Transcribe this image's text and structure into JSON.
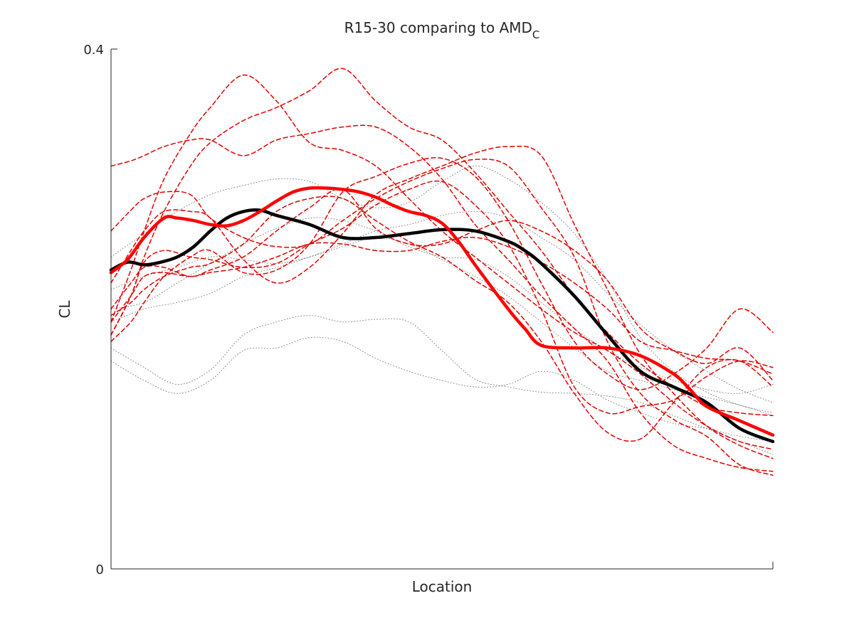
{
  "chart_data": {
    "type": "line",
    "title": "R15-30 comparing to AMD",
    "title_subscript": "C",
    "xlabel": "Location",
    "ylabel": "CL",
    "ylim": [
      0,
      0.4
    ],
    "yticks": [
      0,
      0.4
    ],
    "ytick_labels": [
      "0",
      "0.4"
    ],
    "xlim": [
      0,
      1
    ],
    "grid": false,
    "legend": "none",
    "colors": {
      "mean_group": "#ff0000",
      "mean_reference": "#000000",
      "individual_group": "#e00000",
      "individual_reference": "#555555"
    },
    "series": [
      {
        "style": "dotted",
        "color": "#555555",
        "x": [
          0,
          0.05,
          0.1,
          0.15,
          0.2,
          0.25,
          0.3,
          0.35,
          0.4,
          0.45,
          0.5,
          0.55,
          0.6,
          0.65,
          0.7,
          0.75,
          0.8,
          0.85,
          0.9,
          0.95,
          1
        ],
        "values": [
          0.17,
          0.155,
          0.142,
          0.153,
          0.18,
          0.19,
          0.195,
          0.19,
          0.192,
          0.19,
          0.168,
          0.146,
          0.14,
          0.136,
          0.135,
          0.133,
          0.128,
          0.118,
          0.108,
          0.098,
          0.088
        ]
      },
      {
        "style": "dotted",
        "color": "#555555",
        "x": [
          0,
          0.05,
          0.1,
          0.15,
          0.2,
          0.25,
          0.3,
          0.35,
          0.4,
          0.45,
          0.5,
          0.55,
          0.6,
          0.65,
          0.7,
          0.75,
          0.8,
          0.85,
          0.9,
          0.95,
          1
        ],
        "values": [
          0.19,
          0.2,
          0.205,
          0.212,
          0.225,
          0.232,
          0.24,
          0.25,
          0.26,
          0.265,
          0.272,
          0.275,
          0.27,
          0.255,
          0.238,
          0.212,
          0.188,
          0.168,
          0.152,
          0.138,
          0.128
        ]
      },
      {
        "style": "dotted",
        "color": "#555555",
        "x": [
          0,
          0.05,
          0.1,
          0.15,
          0.2,
          0.25,
          0.3,
          0.35,
          0.4,
          0.45,
          0.5,
          0.55,
          0.6,
          0.65,
          0.7,
          0.75,
          0.8,
          0.85,
          0.9,
          0.95,
          1
        ],
        "values": [
          0.2,
          0.205,
          0.22,
          0.235,
          0.25,
          0.262,
          0.27,
          0.268,
          0.26,
          0.248,
          0.24,
          0.238,
          0.225,
          0.205,
          0.185,
          0.168,
          0.155,
          0.145,
          0.138,
          0.135,
          0.142
        ]
      },
      {
        "style": "dotted",
        "color": "#555555",
        "x": [
          0,
          0.05,
          0.1,
          0.15,
          0.2,
          0.25,
          0.3,
          0.35,
          0.4,
          0.45,
          0.5,
          0.55,
          0.6,
          0.65,
          0.7,
          0.75,
          0.8,
          0.85,
          0.9,
          0.95,
          1
        ],
        "values": [
          0.24,
          0.258,
          0.275,
          0.288,
          0.295,
          0.3,
          0.298,
          0.285,
          0.278,
          0.282,
          0.298,
          0.31,
          0.3,
          0.282,
          0.258,
          0.222,
          0.178,
          0.152,
          0.136,
          0.126,
          0.12
        ]
      },
      {
        "style": "dotted",
        "color": "#555555",
        "x": [
          0,
          0.05,
          0.1,
          0.15,
          0.2,
          0.25,
          0.3,
          0.35,
          0.4,
          0.45,
          0.5,
          0.55,
          0.6,
          0.65,
          0.7,
          0.75,
          0.8,
          0.85,
          0.9,
          0.95,
          1
        ],
        "values": [
          0.215,
          0.225,
          0.232,
          0.24,
          0.238,
          0.235,
          0.24,
          0.248,
          0.255,
          0.25,
          0.238,
          0.225,
          0.21,
          0.19,
          0.17,
          0.152,
          0.145,
          0.138,
          0.132,
          0.126,
          0.118
        ]
      },
      {
        "style": "dotted",
        "color": "#555555",
        "x": [
          0,
          0.05,
          0.1,
          0.15,
          0.2,
          0.25,
          0.3,
          0.35,
          0.4,
          0.45,
          0.5,
          0.55,
          0.6,
          0.65,
          0.7,
          0.75,
          0.8,
          0.85,
          0.9,
          0.95,
          1
        ],
        "values": [
          0.16,
          0.145,
          0.135,
          0.145,
          0.168,
          0.17,
          0.178,
          0.175,
          0.162,
          0.152,
          0.145,
          0.14,
          0.142,
          0.152,
          0.145,
          0.13,
          0.12,
          0.112,
          0.108,
          0.102,
          0.098
        ]
      },
      {
        "style": "dashed",
        "color": "#e00000",
        "x": [
          0,
          0.03,
          0.05,
          0.08,
          0.12,
          0.15,
          0.2,
          0.25,
          0.3,
          0.35,
          0.4,
          0.45,
          0.5,
          0.55,
          0.6,
          0.65,
          0.7,
          0.75,
          0.8,
          0.85,
          0.9,
          0.95,
          1
        ],
        "values": [
          0.31,
          0.314,
          0.318,
          0.325,
          0.33,
          0.33,
          0.318,
          0.33,
          0.335,
          0.34,
          0.34,
          0.325,
          0.3,
          0.265,
          0.238,
          0.21,
          0.185,
          0.16,
          0.12,
          0.095,
          0.085,
          0.078,
          0.075
        ]
      },
      {
        "style": "dashed",
        "color": "#e00000",
        "x": [
          0,
          0.03,
          0.05,
          0.08,
          0.12,
          0.15,
          0.2,
          0.25,
          0.3,
          0.35,
          0.4,
          0.45,
          0.5,
          0.55,
          0.6,
          0.65,
          0.7,
          0.75,
          0.8,
          0.85,
          0.9,
          0.95,
          1
        ],
        "values": [
          0.19,
          0.23,
          0.26,
          0.3,
          0.335,
          0.355,
          0.38,
          0.36,
          0.328,
          0.322,
          0.31,
          0.285,
          0.26,
          0.24,
          0.22,
          0.2,
          0.182,
          0.168,
          0.15,
          0.128,
          0.11,
          0.098,
          0.092
        ]
      },
      {
        "style": "dashed",
        "color": "#e00000",
        "x": [
          0,
          0.03,
          0.05,
          0.08,
          0.12,
          0.15,
          0.2,
          0.25,
          0.3,
          0.35,
          0.4,
          0.45,
          0.5,
          0.55,
          0.6,
          0.65,
          0.7,
          0.75,
          0.8,
          0.85,
          0.9,
          0.95,
          1
        ],
        "values": [
          0.18,
          0.21,
          0.24,
          0.275,
          0.31,
          0.328,
          0.345,
          0.355,
          0.368,
          0.385,
          0.36,
          0.34,
          0.33,
          0.305,
          0.275,
          0.245,
          0.21,
          0.182,
          0.158,
          0.14,
          0.125,
          0.12,
          0.118
        ]
      },
      {
        "style": "dashed",
        "color": "#e00000",
        "x": [
          0,
          0.03,
          0.05,
          0.08,
          0.12,
          0.15,
          0.2,
          0.25,
          0.3,
          0.35,
          0.4,
          0.45,
          0.5,
          0.55,
          0.6,
          0.65,
          0.7,
          0.75,
          0.8,
          0.85,
          0.9,
          0.95,
          1
        ],
        "values": [
          0.22,
          0.245,
          0.26,
          0.275,
          0.275,
          0.27,
          0.238,
          0.22,
          0.232,
          0.258,
          0.288,
          0.3,
          0.31,
          0.32,
          0.325,
          0.318,
          0.265,
          0.215,
          0.165,
          0.135,
          0.11,
          0.095,
          0.085
        ]
      },
      {
        "style": "dashed",
        "color": "#e00000",
        "x": [
          0,
          0.03,
          0.05,
          0.08,
          0.12,
          0.15,
          0.2,
          0.25,
          0.3,
          0.35,
          0.4,
          0.45,
          0.5,
          0.55,
          0.6,
          0.65,
          0.7,
          0.75,
          0.8,
          0.85,
          0.9,
          0.95,
          1
        ],
        "values": [
          0.26,
          0.276,
          0.285,
          0.29,
          0.288,
          0.27,
          0.255,
          0.248,
          0.25,
          0.268,
          0.285,
          0.298,
          0.308,
          0.315,
          0.31,
          0.278,
          0.24,
          0.175,
          0.135,
          0.115,
          0.102,
          0.08,
          0.072
        ]
      },
      {
        "style": "dashed",
        "color": "#e00000",
        "x": [
          0,
          0.03,
          0.05,
          0.08,
          0.12,
          0.15,
          0.2,
          0.25,
          0.3,
          0.35,
          0.4,
          0.45,
          0.5,
          0.55,
          0.6,
          0.65,
          0.7,
          0.75,
          0.8,
          0.85,
          0.9,
          0.95,
          1
        ],
        "values": [
          0.175,
          0.19,
          0.205,
          0.225,
          0.24,
          0.245,
          0.228,
          0.23,
          0.25,
          0.29,
          0.302,
          0.312,
          0.316,
          0.302,
          0.268,
          0.22,
          0.175,
          0.15,
          0.138,
          0.15,
          0.17,
          0.2,
          0.182
        ]
      },
      {
        "style": "dashed",
        "color": "#e00000",
        "x": [
          0,
          0.03,
          0.05,
          0.08,
          0.12,
          0.15,
          0.2,
          0.25,
          0.3,
          0.35,
          0.4,
          0.45,
          0.5,
          0.55,
          0.6,
          0.65,
          0.7,
          0.75,
          0.8,
          0.85,
          0.9,
          0.95,
          1
        ],
        "values": [
          0.2,
          0.22,
          0.232,
          0.232,
          0.225,
          0.23,
          0.24,
          0.26,
          0.278,
          0.292,
          0.262,
          0.25,
          0.25,
          0.26,
          0.268,
          0.26,
          0.245,
          0.222,
          0.185,
          0.168,
          0.158,
          0.17,
          0.145
        ]
      },
      {
        "style": "dashed",
        "color": "#e00000",
        "x": [
          0,
          0.03,
          0.05,
          0.08,
          0.12,
          0.15,
          0.2,
          0.25,
          0.3,
          0.35,
          0.4,
          0.45,
          0.5,
          0.55,
          0.6,
          0.65,
          0.7,
          0.75,
          0.8,
          0.85,
          0.9,
          0.95,
          1
        ],
        "values": [
          0.19,
          0.21,
          0.225,
          0.228,
          0.225,
          0.228,
          0.232,
          0.24,
          0.25,
          0.25,
          0.245,
          0.245,
          0.252,
          0.255,
          0.248,
          0.236,
          0.22,
          0.2,
          0.175,
          0.168,
          0.162,
          0.16,
          0.15
        ]
      },
      {
        "style": "dashed",
        "color": "#e00000",
        "x": [
          0,
          0.03,
          0.05,
          0.08,
          0.12,
          0.15,
          0.2,
          0.25,
          0.3,
          0.35,
          0.4,
          0.45,
          0.5,
          0.55,
          0.6,
          0.65,
          0.7,
          0.75,
          0.8,
          0.85,
          0.9,
          0.95,
          1
        ],
        "values": [
          0.195,
          0.205,
          0.215,
          0.225,
          0.232,
          0.235,
          0.25,
          0.275,
          0.285,
          0.285,
          0.268,
          0.252,
          0.24,
          0.222,
          0.205,
          0.175,
          0.135,
          0.105,
          0.1,
          0.128,
          0.155,
          0.16,
          0.14
        ]
      },
      {
        "style": "dashed",
        "color": "#e00000",
        "x": [
          0,
          0.03,
          0.05,
          0.08,
          0.12,
          0.15,
          0.2,
          0.25,
          0.3,
          0.35,
          0.4,
          0.45,
          0.5,
          0.55,
          0.6,
          0.65,
          0.7,
          0.75,
          0.8,
          0.85,
          0.9,
          0.95,
          1
        ],
        "values": [
          0.18,
          0.21,
          0.236,
          0.245,
          0.24,
          0.238,
          0.232,
          0.235,
          0.25,
          0.262,
          0.28,
          0.292,
          0.298,
          0.28,
          0.25,
          0.2,
          0.14,
          0.12,
          0.125,
          0.13,
          0.148,
          0.16,
          0.155
        ]
      },
      {
        "name": "mean-reference",
        "style": "solid-thick",
        "color": "#000000",
        "x": [
          0,
          0.025,
          0.05,
          0.075,
          0.1,
          0.125,
          0.15,
          0.175,
          0.2,
          0.225,
          0.25,
          0.3,
          0.35,
          0.4,
          0.45,
          0.5,
          0.55,
          0.6,
          0.625,
          0.65,
          0.7,
          0.75,
          0.8,
          0.85,
          0.9,
          0.95,
          1
        ],
        "values": [
          0.23,
          0.236,
          0.234,
          0.236,
          0.24,
          0.248,
          0.26,
          0.27,
          0.275,
          0.276,
          0.272,
          0.265,
          0.255,
          0.255,
          0.258,
          0.261,
          0.26,
          0.252,
          0.245,
          0.235,
          0.21,
          0.18,
          0.152,
          0.14,
          0.128,
          0.108,
          0.098
        ]
      },
      {
        "name": "mean-group",
        "style": "solid-thick",
        "color": "#ff0000",
        "x": [
          0,
          0.025,
          0.05,
          0.08,
          0.1,
          0.125,
          0.15,
          0.175,
          0.2,
          0.225,
          0.25,
          0.275,
          0.3,
          0.325,
          0.35,
          0.375,
          0.4,
          0.425,
          0.45,
          0.475,
          0.5,
          0.525,
          0.55,
          0.6,
          0.625,
          0.65,
          0.7,
          0.75,
          0.8,
          0.85,
          0.875,
          0.9,
          0.95,
          1
        ],
        "values": [
          0.228,
          0.238,
          0.255,
          0.27,
          0.27,
          0.268,
          0.265,
          0.264,
          0.268,
          0.275,
          0.283,
          0.29,
          0.293,
          0.293,
          0.292,
          0.29,
          0.286,
          0.28,
          0.275,
          0.272,
          0.266,
          0.252,
          0.234,
          0.2,
          0.185,
          0.172,
          0.17,
          0.17,
          0.164,
          0.15,
          0.138,
          0.125,
          0.114,
          0.103
        ]
      }
    ]
  }
}
